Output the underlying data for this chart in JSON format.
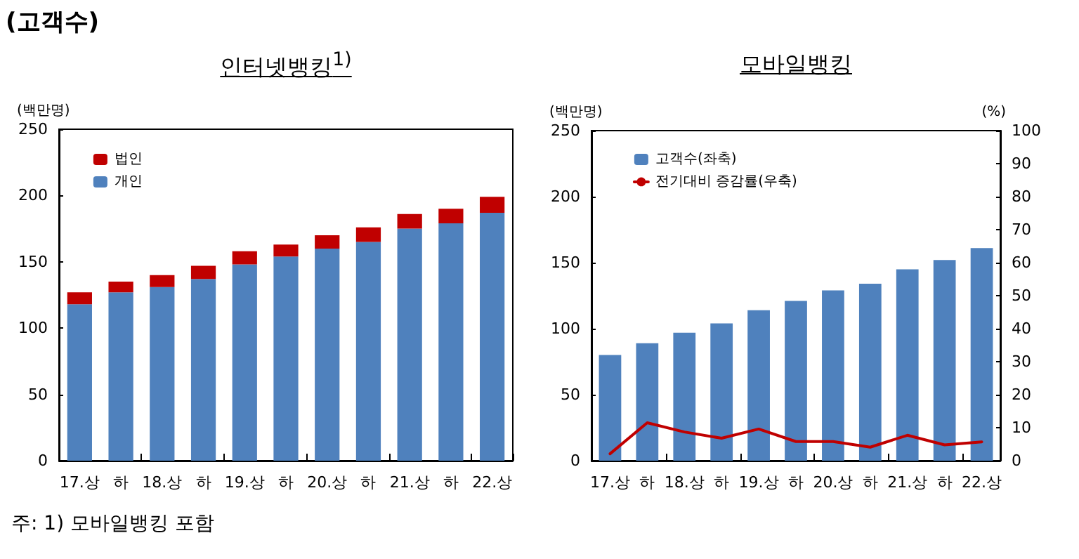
{
  "chart_data": [
    {
      "type": "bar",
      "title": "인터넷뱅킹$^{1)}$",
      "annotations": [
        "(고객수)",
        "주: 1) 모바일뱅킹 포함"
      ],
      "ylabel": "(백만명)",
      "stacked": true,
      "categories": [
        "17.상",
        "하",
        "18.상",
        "하",
        "19.상",
        "하",
        "20.상",
        "하",
        "21.상",
        "하",
        "22.상"
      ],
      "series": [
        {
          "name": "개인",
          "color": "#4f81bd",
          "values": [
            118,
            127,
            131,
            137,
            148,
            154,
            160,
            165,
            175,
            179,
            187
          ]
        },
        {
          "name": "법인",
          "color": "#c00000",
          "values": [
            9,
            8,
            9,
            10,
            10,
            9,
            10,
            11,
            11,
            11,
            12
          ]
        }
      ],
      "ylim": [
        0,
        250
      ],
      "yticks": [
        0,
        50,
        100,
        150,
        200,
        250
      ],
      "grid": false,
      "legend": "top left"
    },
    {
      "type": "bar",
      "title": "모바일뱅킹",
      "ylabel": "(백만명)",
      "y2label": "(%)",
      "categories": [
        "17.상",
        "하",
        "18.상",
        "하",
        "19.상",
        "하",
        "20.상",
        "하",
        "21.상",
        "하",
        "22.상"
      ],
      "series": [
        {
          "name": "고객수(좌축)",
          "color": "#4f81bd",
          "values": [
            80,
            89,
            97,
            104,
            114,
            121,
            129,
            134,
            145,
            152,
            161
          ]
        },
        {
          "name": "전기대비 증감률(우축)",
          "type": "line",
          "axis": "y2",
          "color": "#c00000",
          "marker": "none",
          "line_style": "solid",
          "values": [
            2.1,
            11.5,
            8.7,
            6.8,
            9.6,
            5.8,
            5.8,
            4.1,
            7.7,
            4.8,
            5.7
          ]
        }
      ],
      "ylim": [
        0,
        250
      ],
      "yticks": [
        0,
        50,
        100,
        150,
        200,
        250
      ],
      "y2lim": [
        0,
        100
      ],
      "y2ticks": [
        0,
        10,
        20,
        30,
        40,
        50,
        60,
        70,
        80,
        90,
        100
      ],
      "grid": false,
      "legend": "top left"
    }
  ]
}
